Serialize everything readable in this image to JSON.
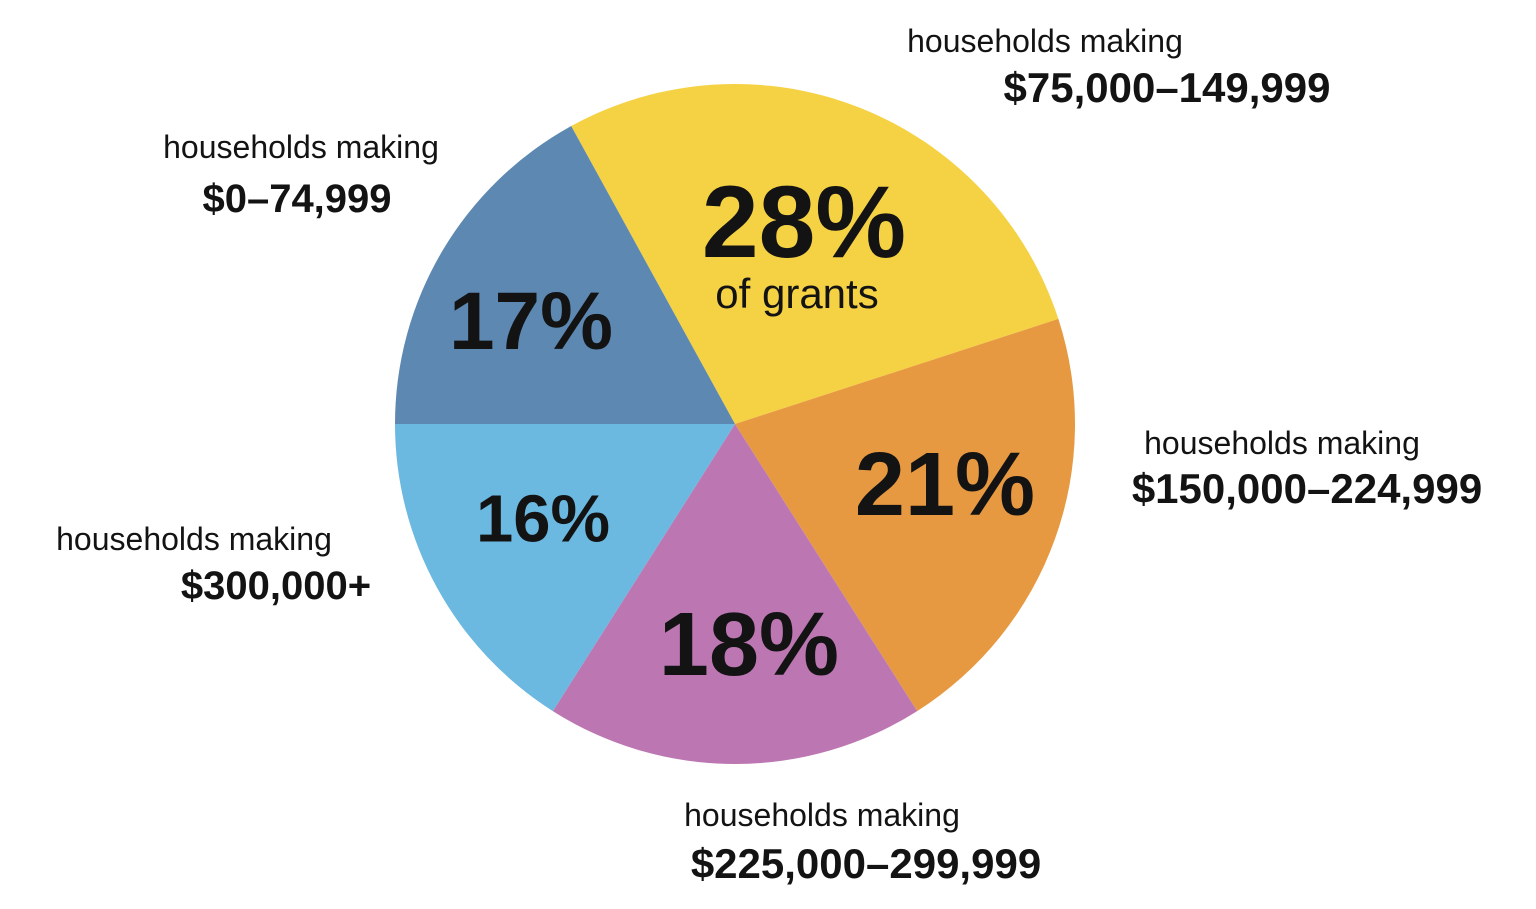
{
  "page": {
    "background_color": "#FFFFFF",
    "text_color": "#131313"
  },
  "chart_data": {
    "type": "pie",
    "title": "",
    "annotation": "of grants",
    "legend": "none",
    "start_angle_screen_deg": -118.8,
    "segments": [
      {
        "label": "households making",
        "range": "$75,000–149,999",
        "value": 28,
        "pct_label": "28%",
        "color": "#F5D244",
        "label_position": "top-right"
      },
      {
        "label": "households making",
        "range": "$150,000–224,999",
        "value": 21,
        "pct_label": "21%",
        "color": "#E79941",
        "label_position": "right"
      },
      {
        "label": "households making",
        "range": "$225,000–299,999",
        "value": 18,
        "pct_label": "18%",
        "color": "#BC77B2",
        "label_position": "bottom"
      },
      {
        "label": "households making",
        "range": "$300,000+",
        "value": 16,
        "pct_label": "16%",
        "color": "#6BB8E0",
        "label_position": "left"
      },
      {
        "label": "households making",
        "range": "$0–74,999",
        "value": 17,
        "pct_label": "17%",
        "color": "#5C88B2",
        "label_position": "top-left"
      }
    ]
  }
}
